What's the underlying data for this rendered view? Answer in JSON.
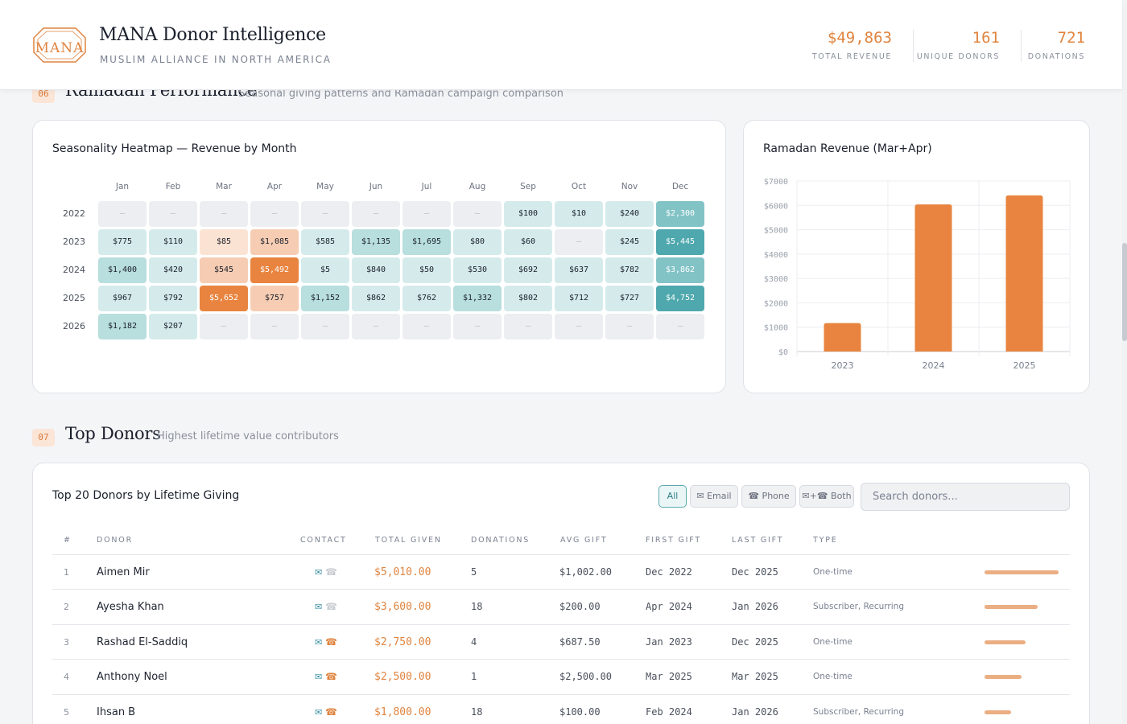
{
  "header": {
    "title": "MANA Donor Intelligence",
    "subtitle": "MUSLIM ALLIANCE IN NORTH AMERICA",
    "logo_text": "MANA",
    "kpis": [
      {
        "value": "$49,863",
        "label": "TOTAL REVENUE"
      },
      {
        "value": "161",
        "label": "UNIQUE DONORS"
      },
      {
        "value": "721",
        "label": "DONATIONS"
      }
    ]
  },
  "section06": {
    "num": "06",
    "title": "Ramadan Performance",
    "desc": "Seasonal giving patterns and Ramadan campaign comparison"
  },
  "heatmap": {
    "title": "Seasonality Heatmap — Revenue by Month",
    "months": [
      "Jan",
      "Feb",
      "Mar",
      "Apr",
      "May",
      "Jun",
      "Jul",
      "Aug",
      "Sep",
      "Oct",
      "Nov",
      "Dec"
    ],
    "rows": [
      {
        "year": "2022",
        "cells": [
          "—",
          "—",
          "—",
          "—",
          "—",
          "—",
          "—",
          "—",
          "$100",
          "$10",
          "$240",
          "$2,300"
        ]
      },
      {
        "year": "2023",
        "cells": [
          "$775",
          "$110",
          "$85",
          "$1,085",
          "$585",
          "$1,135",
          "$1,695",
          "$80",
          "$60",
          "—",
          "$245",
          "$5,445"
        ]
      },
      {
        "year": "2024",
        "cells": [
          "$1,400",
          "$420",
          "$545",
          "$5,492",
          "$5",
          "$840",
          "$50",
          "$530",
          "$692",
          "$637",
          "$782",
          "$3,862"
        ]
      },
      {
        "year": "2025",
        "cells": [
          "$967",
          "$792",
          "$5,652",
          "$757",
          "$1,152",
          "$862",
          "$762",
          "$1,332",
          "$802",
          "$712",
          "$727",
          "$4,752"
        ]
      },
      {
        "year": "2026",
        "cells": [
          "$1,182",
          "$207",
          "—",
          "—",
          "—",
          "—",
          "—",
          "—",
          "—",
          "—",
          "—",
          "—"
        ]
      }
    ],
    "colors": {
      "empty": "#eceef1",
      "teal_light": "#d5ebeb",
      "teal_mid": "#b8dede",
      "teal_high": "#82c3c6",
      "teal_max": "#4ea8ad",
      "ramadan_light": "#fbe3d3",
      "ramadan_mid": "#f6cdb3",
      "ramadan_max": "#e8843f"
    }
  },
  "chart_data": {
    "type": "bar",
    "title": "Ramadan Revenue (Mar+Apr)",
    "categories": [
      "2023",
      "2024",
      "2025"
    ],
    "values": [
      1170,
      6037,
      6409
    ],
    "yticks": [
      "$0",
      "$1000",
      "$2000",
      "$3000",
      "$4000",
      "$5000",
      "$6000",
      "$7000"
    ],
    "ylim": [
      0,
      7000
    ],
    "xlabel": "",
    "ylabel": "",
    "grid": true,
    "bar_color": "#e8843f"
  },
  "section07": {
    "num": "07",
    "title": "Top Donors",
    "desc": "Highest lifetime value contributors"
  },
  "donors": {
    "title": "Top 20 Donors by Lifetime Giving",
    "filters": [
      {
        "label": "All",
        "active": true
      },
      {
        "label": "✉ Email",
        "active": false
      },
      {
        "label": "☎ Phone",
        "active": false
      },
      {
        "label": "✉+☎ Both",
        "active": false
      }
    ],
    "search_placeholder": "Search donors...",
    "columns": [
      "#",
      "DONOR",
      "CONTACT",
      "TOTAL GIVEN",
      "DONATIONS",
      "AVG GIFT",
      "FIRST GIFT",
      "LAST GIFT",
      "TYPE"
    ],
    "rows": [
      {
        "rank": "1",
        "name": "Aimen Mir",
        "email": true,
        "phone": false,
        "total": "$5,010.00",
        "donations": "5",
        "avg": "$1,002.00",
        "first": "Dec 2022",
        "last": "Dec 2025",
        "type": "One-time",
        "share": 1.0
      },
      {
        "rank": "2",
        "name": "Ayesha Khan",
        "email": true,
        "phone": false,
        "total": "$3,600.00",
        "donations": "18",
        "avg": "$200.00",
        "first": "Apr 2024",
        "last": "Jan 2026",
        "type": "Subscriber, Recurring",
        "share": 0.72
      },
      {
        "rank": "3",
        "name": "Rashad El-Saddiq",
        "email": true,
        "phone": true,
        "total": "$2,750.00",
        "donations": "4",
        "avg": "$687.50",
        "first": "Jan 2023",
        "last": "Dec 2025",
        "type": "One-time",
        "share": 0.55
      },
      {
        "rank": "4",
        "name": "Anthony Noel",
        "email": true,
        "phone": true,
        "total": "$2,500.00",
        "donations": "1",
        "avg": "$2,500.00",
        "first": "Mar 2025",
        "last": "Mar 2025",
        "type": "One-time",
        "share": 0.5
      },
      {
        "rank": "5",
        "name": "Ihsan B",
        "email": true,
        "phone": true,
        "total": "$1,800.00",
        "donations": "18",
        "avg": "$100.00",
        "first": "Feb 2024",
        "last": "Jan 2026",
        "type": "Subscriber, Recurring",
        "share": 0.36
      }
    ],
    "icons": {
      "mail": "mail-icon",
      "phone": "phone-icon"
    }
  }
}
